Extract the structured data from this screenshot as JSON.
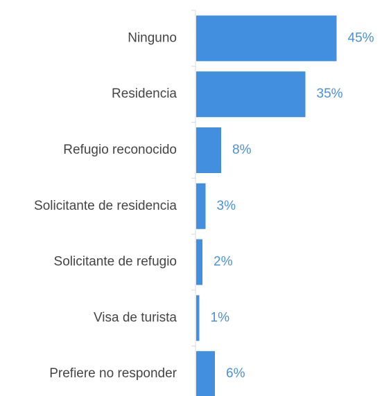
{
  "chart_data": {
    "type": "bar",
    "orientation": "horizontal",
    "categories": [
      "Ninguno",
      "Residencia",
      "Refugio reconocido",
      "Solicitante de residencia",
      "Solicitante de refugio",
      "Visa de turista",
      "Prefiere no responder"
    ],
    "values": [
      45,
      35,
      8,
      3,
      2,
      1,
      6
    ],
    "value_labels": [
      "45%",
      "35%",
      "8%",
      "3%",
      "2%",
      "1%",
      "6%"
    ],
    "color": "#428fe0"
  }
}
